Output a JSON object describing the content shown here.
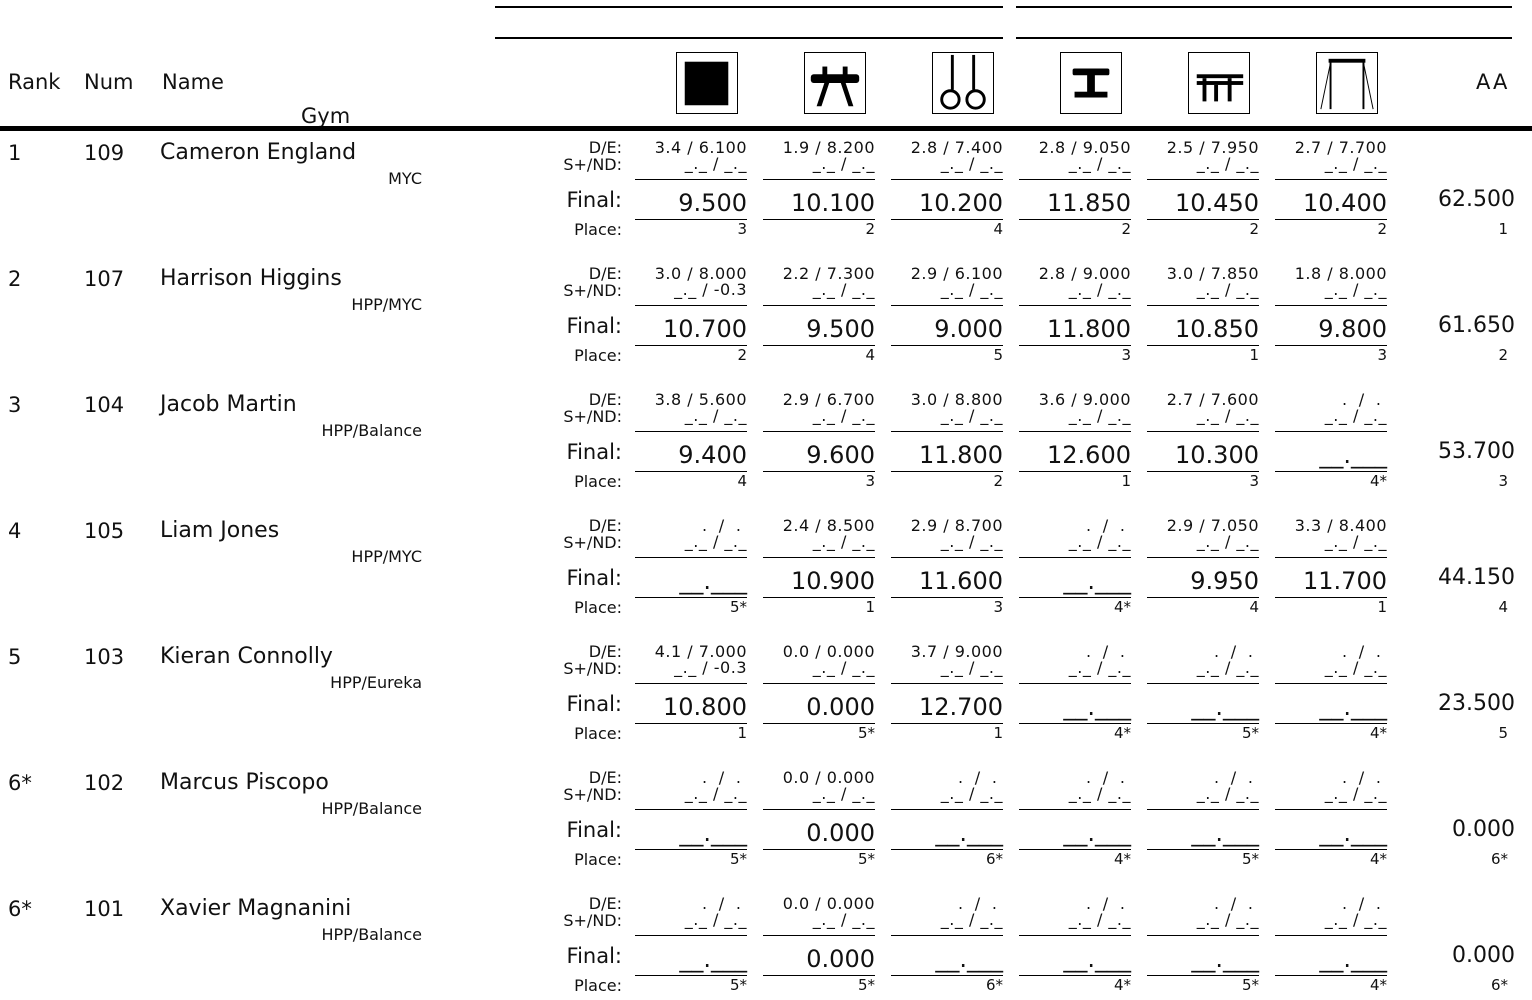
{
  "header": {
    "rank": "Rank",
    "num": "Num",
    "name": "Name",
    "gym": "Gym",
    "aa": "AA"
  },
  "apparatus_icons": [
    "floor-icon",
    "pommel-horse-icon",
    "rings-icon",
    "vault-icon",
    "parallel-bars-icon",
    "high-bar-icon"
  ],
  "labels": {
    "de": "D/E:",
    "snd": "S+/ND:",
    "final": "Final:",
    "place": "Place:"
  },
  "rows": [
    {
      "rank": "1",
      "num": "109",
      "name": "Cameron England",
      "gym": "MYC",
      "events": [
        {
          "de": "3.4 / 6.100",
          "snd": "_._ / _._",
          "final": "9.500",
          "place": "3"
        },
        {
          "de": "1.9 / 8.200",
          "snd": "_._ / _._",
          "final": "10.100",
          "place": "2"
        },
        {
          "de": "2.8 / 7.400",
          "snd": "_._ / _._",
          "final": "10.200",
          "place": "4"
        },
        {
          "de": "2.8 / 9.050",
          "snd": "_._ / _._",
          "final": "11.850",
          "place": "2"
        },
        {
          "de": "2.5 / 7.950",
          "snd": "_._ / _._",
          "final": "10.450",
          "place": "2"
        },
        {
          "de": "2.7 / 7.700",
          "snd": "_._ / _._",
          "final": "10.400",
          "place": "2"
        }
      ],
      "aa": "62.500",
      "aa_place": "1"
    },
    {
      "rank": "2",
      "num": "107",
      "name": "Harrison Higgins",
      "gym": "HPP/MYC",
      "events": [
        {
          "de": "3.0 / 8.000",
          "snd": "_._ / -0.3",
          "final": "10.700",
          "place": "2"
        },
        {
          "de": "2.2 / 7.300",
          "snd": "_._ / _._",
          "final": "9.500",
          "place": "4"
        },
        {
          "de": "2.9 / 6.100",
          "snd": "_._ / _._",
          "final": "9.000",
          "place": "5"
        },
        {
          "de": "2.8 / 9.000",
          "snd": "_._ / _._",
          "final": "11.800",
          "place": "3"
        },
        {
          "de": "3.0 / 7.850",
          "snd": "_._ / _._",
          "final": "10.850",
          "place": "1"
        },
        {
          "de": "1.8 / 8.000",
          "snd": "_._ / _._",
          "final": "9.800",
          "place": "3"
        }
      ],
      "aa": "61.650",
      "aa_place": "2"
    },
    {
      "rank": "3",
      "num": "104",
      "name": "Jacob Martin",
      "gym": "HPP/Balance",
      "events": [
        {
          "de": "3.8 / 5.600",
          "snd": "_._ / _._",
          "final": "9.400",
          "place": "4"
        },
        {
          "de": "2.9 / 6.700",
          "snd": "_._ / _._",
          "final": "9.600",
          "place": "3"
        },
        {
          "de": "3.0 / 8.800",
          "snd": "_._ / _._",
          "final": "11.800",
          "place": "2"
        },
        {
          "de": "3.6 / 9.000",
          "snd": "_._ / _._",
          "final": "12.600",
          "place": "1"
        },
        {
          "de": "2.7 / 7.600",
          "snd": "_._ / _._",
          "final": "10.300",
          "place": "3"
        },
        {
          "de": " .  /  . ",
          "snd": "_._ / _._",
          "final": "__.___",
          "place": "4*"
        }
      ],
      "aa": "53.700",
      "aa_place": "3"
    },
    {
      "rank": "4",
      "num": "105",
      "name": "Liam Jones",
      "gym": "HPP/MYC",
      "events": [
        {
          "de": " .  /  . ",
          "snd": "_._ / _._",
          "final": "__.___",
          "place": "5*"
        },
        {
          "de": "2.4 / 8.500",
          "snd": "_._ / _._",
          "final": "10.900",
          "place": "1"
        },
        {
          "de": "2.9 / 8.700",
          "snd": "_._ / _._",
          "final": "11.600",
          "place": "3"
        },
        {
          "de": " .  /  . ",
          "snd": "_._ / _._",
          "final": "__.___",
          "place": "4*"
        },
        {
          "de": "2.9 / 7.050",
          "snd": "_._ / _._",
          "final": "9.950",
          "place": "4"
        },
        {
          "de": "3.3 / 8.400",
          "snd": "_._ / _._",
          "final": "11.700",
          "place": "1"
        }
      ],
      "aa": "44.150",
      "aa_place": "4"
    },
    {
      "rank": "5",
      "num": "103",
      "name": "Kieran Connolly",
      "gym": "HPP/Eureka",
      "events": [
        {
          "de": "4.1 / 7.000",
          "snd": "_._ / -0.3",
          "final": "10.800",
          "place": "1"
        },
        {
          "de": "0.0 / 0.000",
          "snd": "_._ / _._",
          "final": "0.000",
          "place": "5*"
        },
        {
          "de": "3.7 / 9.000",
          "snd": "_._ / _._",
          "final": "12.700",
          "place": "1"
        },
        {
          "de": " .  /  . ",
          "snd": "_._ / _._",
          "final": "__.___",
          "place": "4*"
        },
        {
          "de": " .  /  . ",
          "snd": "_._ / _._",
          "final": "__.___",
          "place": "5*"
        },
        {
          "de": " .  /  . ",
          "snd": "_._ / _._",
          "final": "__.___",
          "place": "4*"
        }
      ],
      "aa": "23.500",
      "aa_place": "5"
    },
    {
      "rank": "6*",
      "num": "102",
      "name": "Marcus Piscopo",
      "gym": "HPP/Balance",
      "events": [
        {
          "de": " .  /  . ",
          "snd": "_._ / _._",
          "final": "__.___",
          "place": "5*"
        },
        {
          "de": "0.0 / 0.000",
          "snd": "_._ / _._",
          "final": "0.000",
          "place": "5*"
        },
        {
          "de": " .  /  . ",
          "snd": "_._ / _._",
          "final": "__.___",
          "place": "6*"
        },
        {
          "de": " .  /  . ",
          "snd": "_._ / _._",
          "final": "__.___",
          "place": "4*"
        },
        {
          "de": " .  /  . ",
          "snd": "_._ / _._",
          "final": "__.___",
          "place": "5*"
        },
        {
          "de": " .  /  . ",
          "snd": "_._ / _._",
          "final": "__.___",
          "place": "4*"
        }
      ],
      "aa": "0.000",
      "aa_place": "6*"
    },
    {
      "rank": "6*",
      "num": "101",
      "name": "Xavier Magnanini",
      "gym": "HPP/Balance",
      "events": [
        {
          "de": " .  /  . ",
          "snd": "_._ / _._",
          "final": "__.___",
          "place": "5*"
        },
        {
          "de": "0.0 / 0.000",
          "snd": "_._ / _._",
          "final": "0.000",
          "place": "5*"
        },
        {
          "de": " .  /  . ",
          "snd": "_._ / _._",
          "final": "__.___",
          "place": "6*"
        },
        {
          "de": " .  /  . ",
          "snd": "_._ / _._",
          "final": "__.___",
          "place": "4*"
        },
        {
          "de": " .  /  . ",
          "snd": "_._ / _._",
          "final": "__.___",
          "place": "5*"
        },
        {
          "de": " .  /  . ",
          "snd": "_._ / _._",
          "final": "__.___",
          "place": "4*"
        }
      ],
      "aa": "0.000",
      "aa_place": "6*"
    }
  ]
}
